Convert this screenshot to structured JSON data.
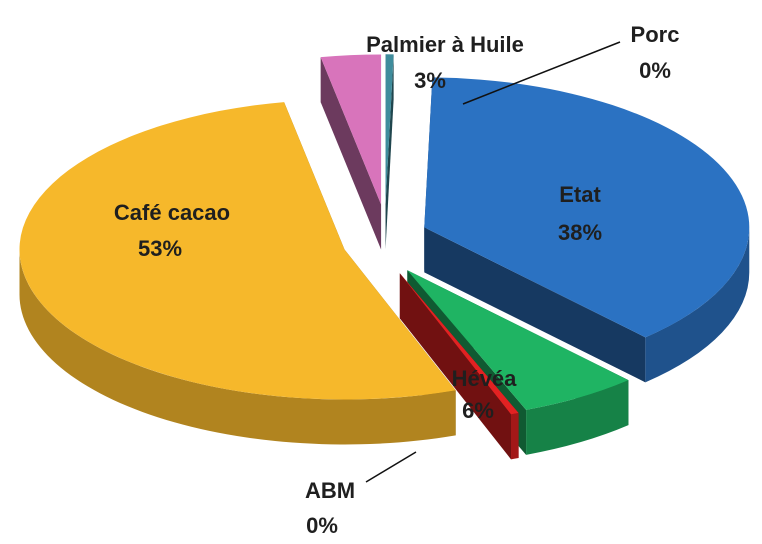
{
  "chart_data": {
    "type": "pie",
    "categories": [
      "Porc",
      "Etat",
      "Hévéa",
      "ABM",
      "Café cacao",
      "Palmier à Huile"
    ],
    "values": [
      0.4,
      38,
      6,
      0.4,
      53,
      3
    ],
    "value_labels": [
      "0%",
      "38%",
      "6%",
      "0%",
      "53%",
      "3%"
    ],
    "colors": [
      "#3f8c9c",
      "#2b72c2",
      "#1fb463",
      "#e22222",
      "#f6b82b",
      "#d874bb"
    ]
  }
}
